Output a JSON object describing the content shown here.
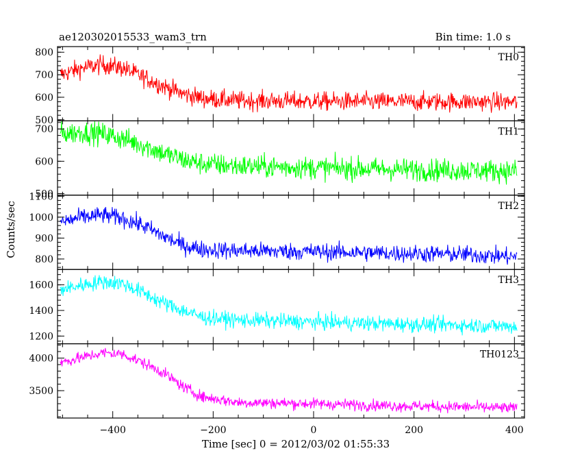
{
  "header": {
    "title": "ae120302015533_wam3_trn",
    "bin_time": "Bin time: 1.0 s"
  },
  "axes": {
    "xlabel": "Time [sec] 0 = 2012/03/02 01:55:33",
    "ylabel": "Counts/sec"
  },
  "chart_data": {
    "type": "line",
    "title": "ae120302015533_wam3_trn",
    "xlabel": "Time [sec] 0 = 2012/03/02 01:55:33",
    "ylabel": "Counts/sec",
    "xlim": [
      -510,
      420
    ],
    "x_ticks": [
      -400,
      -200,
      0,
      200,
      400
    ],
    "x_tick_labels": [
      "−400",
      "−200",
      "0",
      "200",
      "400"
    ],
    "x_step": 1.0,
    "grid": false,
    "panels": [
      {
        "name": "TH0",
        "color": "#ff0000",
        "ylim": [
          495,
          825
        ],
        "y_ticks": [
          500,
          600,
          700,
          800
        ],
        "noise": 38,
        "trend": [
          [
            -505,
            700
          ],
          [
            -460,
            730
          ],
          [
            -420,
            745
          ],
          [
            -380,
            730
          ],
          [
            -340,
            690
          ],
          [
            -300,
            650
          ],
          [
            -260,
            615
          ],
          [
            -220,
            595
          ],
          [
            -150,
            585
          ],
          [
            0,
            582
          ],
          [
            150,
            580
          ],
          [
            300,
            580
          ],
          [
            405,
            578
          ]
        ]
      },
      {
        "name": "TH1",
        "color": "#00ff00",
        "ylim": [
          495,
          725
        ],
        "y_ticks": [
          500,
          600,
          700
        ],
        "noise": 32,
        "trend": [
          [
            -505,
            685
          ],
          [
            -460,
            690
          ],
          [
            -420,
            685
          ],
          [
            -380,
            670
          ],
          [
            -340,
            650
          ],
          [
            -300,
            625
          ],
          [
            -260,
            605
          ],
          [
            -220,
            592
          ],
          [
            -150,
            585
          ],
          [
            0,
            580
          ],
          [
            150,
            575
          ],
          [
            300,
            572
          ],
          [
            405,
            570
          ]
        ]
      },
      {
        "name": "TH2",
        "color": "#0000ff",
        "ylim": [
          750,
          1105
        ],
        "y_ticks": [
          800,
          900,
          1000,
          1100
        ],
        "noise": 38,
        "trend": [
          [
            -505,
            975
          ],
          [
            -460,
            1000
          ],
          [
            -420,
            1010
          ],
          [
            -380,
            995
          ],
          [
            -340,
            960
          ],
          [
            -300,
            910
          ],
          [
            -260,
            865
          ],
          [
            -220,
            845
          ],
          [
            -150,
            840
          ],
          [
            0,
            835
          ],
          [
            150,
            828
          ],
          [
            300,
            822
          ],
          [
            405,
            810
          ]
        ]
      },
      {
        "name": "TH3",
        "color": "#00ffff",
        "ylim": [
          1140,
          1720
        ],
        "y_ticks": [
          1200,
          1400,
          1600
        ],
        "noise": 55,
        "trend": [
          [
            -505,
            1560
          ],
          [
            -460,
            1600
          ],
          [
            -420,
            1625
          ],
          [
            -380,
            1610
          ],
          [
            -340,
            1540
          ],
          [
            -300,
            1460
          ],
          [
            -260,
            1400
          ],
          [
            -220,
            1345
          ],
          [
            -150,
            1325
          ],
          [
            0,
            1310
          ],
          [
            150,
            1295
          ],
          [
            300,
            1285
          ],
          [
            405,
            1275
          ]
        ]
      },
      {
        "name": "TH0123",
        "color": "#ff00ff",
        "ylim": [
          3080,
          4220
        ],
        "y_ticks": [
          3500,
          4000
        ],
        "noise": 80,
        "trend": [
          [
            -505,
            3930
          ],
          [
            -460,
            4010
          ],
          [
            -420,
            4080
          ],
          [
            -380,
            4060
          ],
          [
            -340,
            3930
          ],
          [
            -300,
            3780
          ],
          [
            -260,
            3560
          ],
          [
            -220,
            3400
          ],
          [
            -150,
            3320
          ],
          [
            0,
            3300
          ],
          [
            150,
            3270
          ],
          [
            300,
            3250
          ],
          [
            405,
            3230
          ]
        ]
      }
    ]
  }
}
